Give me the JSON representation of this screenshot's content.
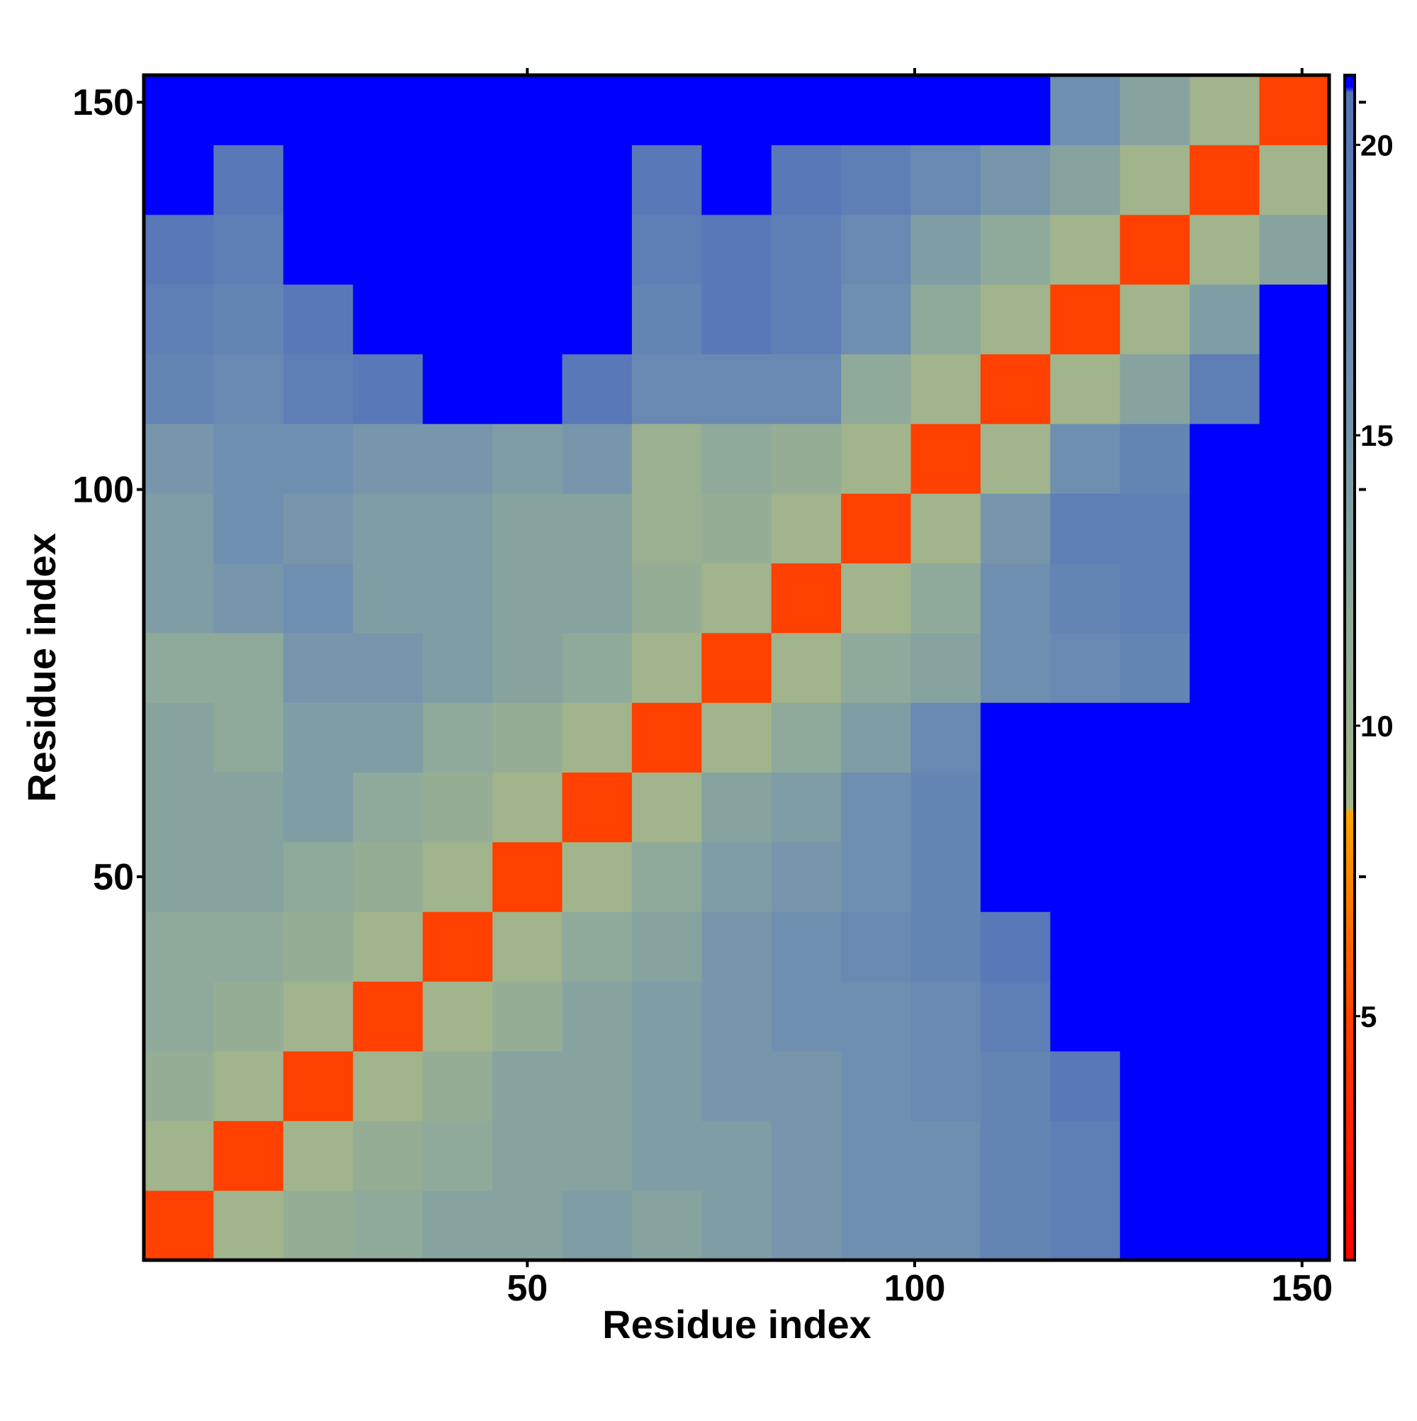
{
  "chart_data": {
    "type": "heatmap",
    "x_label": "Residue index",
    "y_label": "Residue index",
    "xbins": [
      0.5,
      9.5,
      18.5,
      27.5,
      36.5,
      45.5,
      54.5,
      63.5,
      72.5,
      81.5,
      90.5,
      99.5,
      108.5,
      117.5,
      126.5,
      135.5,
      144.5,
      153.5
    ],
    "ybins": [
      0.5,
      9.5,
      18.5,
      27.5,
      36.5,
      45.5,
      54.5,
      63.5,
      72.5,
      81.5,
      90.5,
      99.5,
      108.5,
      117.5,
      126.5,
      135.5,
      144.5,
      153.5
    ],
    "values": [
      [
        5,
        9,
        11,
        12,
        13,
        13,
        14,
        13,
        14,
        15,
        16,
        16,
        18,
        19,
        21,
        21,
        21
      ],
      [
        9,
        5,
        9,
        11,
        12,
        13,
        13,
        14,
        14,
        15,
        16,
        16,
        18,
        19,
        21,
        21,
        21
      ],
      [
        11,
        9,
        5,
        9,
        11,
        13,
        13,
        14,
        15,
        15,
        16,
        17,
        18,
        20,
        21,
        21,
        21
      ],
      [
        12,
        11,
        9,
        5,
        9,
        11,
        13,
        14,
        15,
        16,
        16,
        17,
        19,
        21,
        21,
        21,
        21
      ],
      [
        12,
        12,
        11,
        9,
        5,
        9,
        12,
        13,
        15,
        16,
        17,
        18,
        20,
        21,
        21,
        21,
        21
      ],
      [
        13,
        13,
        12,
        11,
        9,
        5,
        9,
        12,
        14,
        15,
        16,
        18,
        21,
        21,
        21,
        21,
        21
      ],
      [
        13,
        13,
        14,
        12,
        11,
        9,
        5,
        9,
        13,
        14,
        16,
        18,
        21,
        21,
        21,
        21,
        21
      ],
      [
        13,
        12,
        14,
        14,
        12,
        11,
        9,
        5,
        9,
        12,
        14,
        17,
        21,
        21,
        21,
        21,
        21
      ],
      [
        12,
        12,
        15,
        15,
        14,
        13,
        12,
        9,
        5,
        9,
        12,
        13,
        16,
        17,
        18,
        21,
        21
      ],
      [
        14,
        15,
        16,
        14,
        14,
        13,
        13,
        11,
        9,
        5,
        9,
        12,
        16,
        18,
        19,
        21,
        21
      ],
      [
        14,
        16,
        15,
        14,
        14,
        13,
        13,
        10,
        11,
        9,
        5,
        9,
        15,
        19,
        19,
        21,
        21
      ],
      [
        15,
        16,
        16,
        15,
        15,
        14,
        15,
        10,
        12,
        11,
        9,
        5,
        9,
        16,
        18,
        21,
        21
      ],
      [
        18,
        17,
        19,
        20,
        21,
        21,
        20,
        17,
        17,
        17,
        12,
        9,
        5,
        9,
        13,
        19,
        21
      ],
      [
        19,
        18,
        20,
        21,
        21,
        21,
        21,
        18,
        20,
        19,
        16,
        12,
        9,
        5,
        9,
        14,
        21
      ],
      [
        20,
        19,
        21,
        21,
        21,
        21,
        21,
        19,
        20,
        19,
        17,
        14,
        12,
        9,
        5,
        9,
        13
      ],
      [
        21,
        20,
        21,
        21,
        21,
        21,
        21,
        20,
        21,
        20,
        19,
        17,
        15,
        13,
        9,
        5,
        9
      ],
      [
        21,
        21,
        21,
        21,
        21,
        21,
        21,
        21,
        21,
        21,
        21,
        21,
        21,
        16,
        13,
        9,
        5
      ]
    ],
    "xlim": [
      0.5,
      153.5
    ],
    "ylim": [
      0.5,
      153.5
    ],
    "xticks": [
      50,
      100,
      150
    ],
    "yticks": [
      50,
      100,
      150
    ],
    "zlim": [
      0.8,
      21.2
    ],
    "zticks": [
      5,
      10,
      15,
      20
    ],
    "colorscale": [
      [
        0.8,
        "#ff0000"
      ],
      [
        5,
        "#ff4000"
      ],
      [
        8.5,
        "#ffa500"
      ],
      [
        8.6,
        "#a3b58a"
      ],
      [
        12,
        "#8faa9a"
      ],
      [
        16,
        "#6f8fb0"
      ],
      [
        20.9,
        "#5573b8"
      ],
      [
        21.0,
        "#0000ff"
      ],
      [
        21.2,
        "#0000ff"
      ]
    ]
  }
}
